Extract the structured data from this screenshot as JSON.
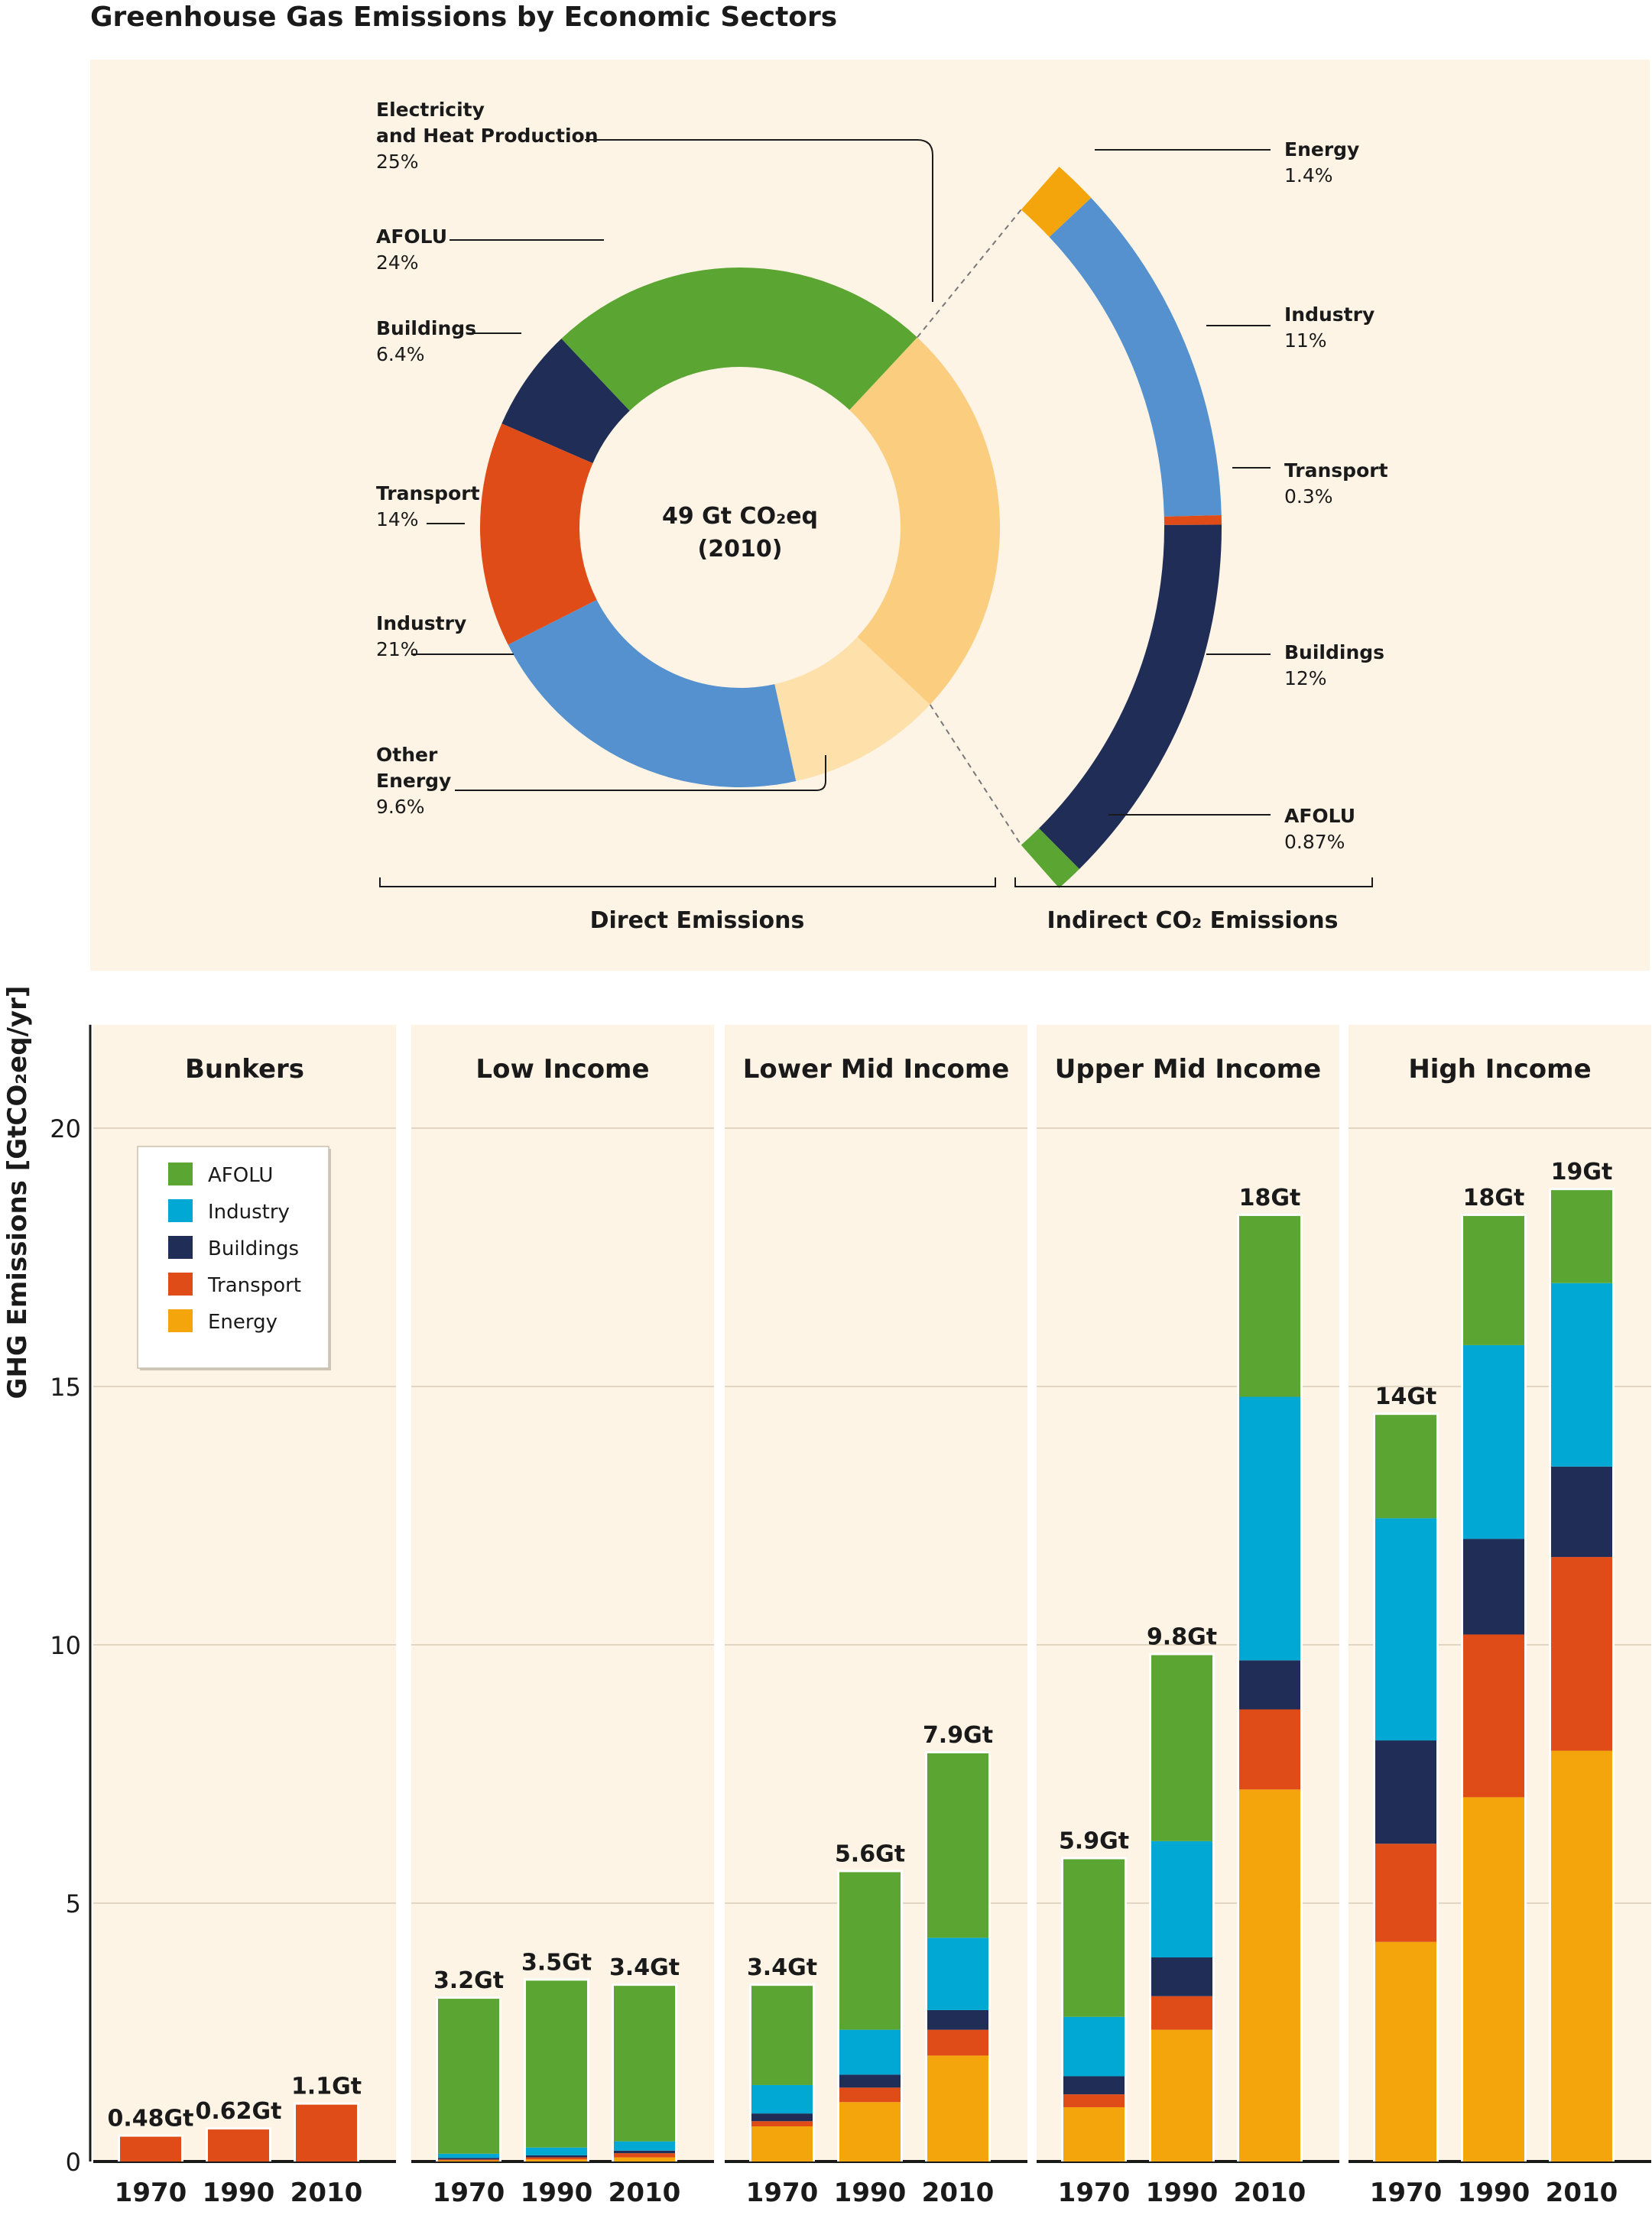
{
  "title": "Greenhouse Gas Emissions by Economic Sectors",
  "colors": {
    "panel_bg": "#fdf4e6",
    "AFOLU": "#5ba533",
    "Industry": "#00a8d3",
    "Buildings": "#1f2d57",
    "Transport": "#e04c17",
    "Energy": "#f4a50c",
    "donut_industry": "#5491ce",
    "donut_electricity": "#fbcd7f",
    "donut_other_energy": "#fde0aa"
  },
  "chart_data": [
    {
      "type": "pie",
      "title": "Greenhouse Gas Emissions by Economic Sectors",
      "center_label": [
        "49 Gt CO₂eq",
        "(2010)"
      ],
      "groups": [
        "Direct Emissions",
        "Indirect CO₂ Emissions"
      ],
      "direct": [
        {
          "name": "Electricity and Heat Production",
          "label_lines": [
            "Electricity",
            "and Heat Production"
          ],
          "value": 25,
          "value_label": "25%",
          "color_key": "donut_electricity"
        },
        {
          "name": "Other Energy",
          "label_lines": [
            "Other",
            "Energy"
          ],
          "value": 9.6,
          "value_label": "9.6%",
          "color_key": "donut_other_energy"
        },
        {
          "name": "Industry",
          "label_lines": [
            "Industry"
          ],
          "value": 21,
          "value_label": "21%",
          "color_key": "donut_industry"
        },
        {
          "name": "Transport",
          "label_lines": [
            "Transport"
          ],
          "value": 14,
          "value_label": "14%",
          "color_key": "Transport"
        },
        {
          "name": "Buildings",
          "label_lines": [
            "Buildings"
          ],
          "value": 6.4,
          "value_label": "6.4%",
          "color_key": "Buildings"
        },
        {
          "name": "AFOLU",
          "label_lines": [
            "AFOLU"
          ],
          "value": 24,
          "value_label": "24%",
          "color_key": "AFOLU"
        }
      ],
      "indirect": [
        {
          "name": "Energy",
          "value": 1.4,
          "value_label": "1.4%",
          "color_key": "Energy"
        },
        {
          "name": "Industry",
          "value": 11,
          "value_label": "11%",
          "color_key": "donut_industry"
        },
        {
          "name": "Transport",
          "value": 0.3,
          "value_label": "0.3%",
          "color_key": "Transport"
        },
        {
          "name": "Buildings",
          "value": 12,
          "value_label": "12%",
          "color_key": "Buildings"
        },
        {
          "name": "AFOLU",
          "value": 0.87,
          "value_label": "0.87%",
          "color_key": "AFOLU"
        }
      ]
    },
    {
      "type": "bar",
      "stacked": true,
      "ylabel": "GHG Emissions [GtCO₂eq/yr]",
      "ylim": [
        0,
        22
      ],
      "yticks": [
        0,
        5,
        10,
        15,
        20
      ],
      "grid": true,
      "legend": {
        "placement": "top-left",
        "entries": [
          "AFOLU",
          "Industry",
          "Buildings",
          "Transport",
          "Energy"
        ]
      },
      "stack_order": [
        "Energy",
        "Transport",
        "Buildings",
        "Industry",
        "AFOLU"
      ],
      "panels": [
        {
          "title": "Bunkers",
          "bars": [
            {
              "year": "1970",
              "total_label": "0.48Gt",
              "values": {
                "Energy": 0,
                "Transport": 0.48,
                "Buildings": 0,
                "Industry": 0,
                "AFOLU": 0
              }
            },
            {
              "year": "1990",
              "total_label": "0.62Gt",
              "values": {
                "Energy": 0,
                "Transport": 0.62,
                "Buildings": 0,
                "Industry": 0,
                "AFOLU": 0
              }
            },
            {
              "year": "2010",
              "total_label": "1.1Gt",
              "values": {
                "Energy": 0,
                "Transport": 1.1,
                "Buildings": 0,
                "Industry": 0,
                "AFOLU": 0
              }
            }
          ]
        },
        {
          "title": "Low Income",
          "bars": [
            {
              "year": "1970",
              "total_label": "3.2Gt",
              "values": {
                "Energy": 0.02,
                "Transport": 0.02,
                "Buildings": 0.03,
                "Industry": 0.08,
                "AFOLU": 3.0
              }
            },
            {
              "year": "1990",
              "total_label": "3.5Gt",
              "values": {
                "Energy": 0.04,
                "Transport": 0.04,
                "Buildings": 0.04,
                "Industry": 0.15,
                "AFOLU": 3.23
              }
            },
            {
              "year": "2010",
              "total_label": "3.4Gt",
              "values": {
                "Energy": 0.08,
                "Transport": 0.08,
                "Buildings": 0.05,
                "Industry": 0.18,
                "AFOLU": 3.01
              }
            }
          ]
        },
        {
          "title": "Lower Mid Income",
          "bars": [
            {
              "year": "1970",
              "total_label": "3.4Gt",
              "values": {
                "Energy": 0.68,
                "Transport": 0.1,
                "Buildings": 0.15,
                "Industry": 0.55,
                "AFOLU": 1.92
              }
            },
            {
              "year": "1990",
              "total_label": "5.6Gt",
              "values": {
                "Energy": 1.15,
                "Transport": 0.28,
                "Buildings": 0.25,
                "Industry": 0.87,
                "AFOLU": 3.05
              }
            },
            {
              "year": "2010",
              "total_label": "7.9Gt",
              "values": {
                "Energy": 2.05,
                "Transport": 0.5,
                "Buildings": 0.38,
                "Industry": 1.4,
                "AFOLU": 3.57
              }
            }
          ]
        },
        {
          "title": "Upper Mid Income",
          "bars": [
            {
              "year": "1970",
              "total_label": "5.9Gt",
              "values": {
                "Energy": 1.05,
                "Transport": 0.25,
                "Buildings": 0.35,
                "Industry": 1.15,
                "AFOLU": 3.05
              }
            },
            {
              "year": "1990",
              "total_label": "9.8Gt",
              "values": {
                "Energy": 2.55,
                "Transport": 0.65,
                "Buildings": 0.75,
                "Industry": 2.25,
                "AFOLU": 3.6
              }
            },
            {
              "year": "2010",
              "total_label": "18Gt",
              "values": {
                "Energy": 7.2,
                "Transport": 1.55,
                "Buildings": 0.95,
                "Industry": 5.1,
                "AFOLU": 3.5
              }
            }
          ]
        },
        {
          "title": "High Income",
          "bars": [
            {
              "year": "1970",
              "total_label": "14Gt",
              "values": {
                "Energy": 4.25,
                "Transport": 1.9,
                "Buildings": 2.0,
                "Industry": 4.3,
                "AFOLU": 2.0
              }
            },
            {
              "year": "1990",
              "total_label": "18Gt",
              "values": {
                "Energy": 7.05,
                "Transport": 3.15,
                "Buildings": 1.85,
                "Industry": 3.75,
                "AFOLU": 2.5
              }
            },
            {
              "year": "2010",
              "total_label": "19Gt",
              "values": {
                "Energy": 7.95,
                "Transport": 3.75,
                "Buildings": 1.75,
                "Industry": 3.55,
                "AFOLU": 1.8
              }
            }
          ]
        }
      ]
    }
  ]
}
